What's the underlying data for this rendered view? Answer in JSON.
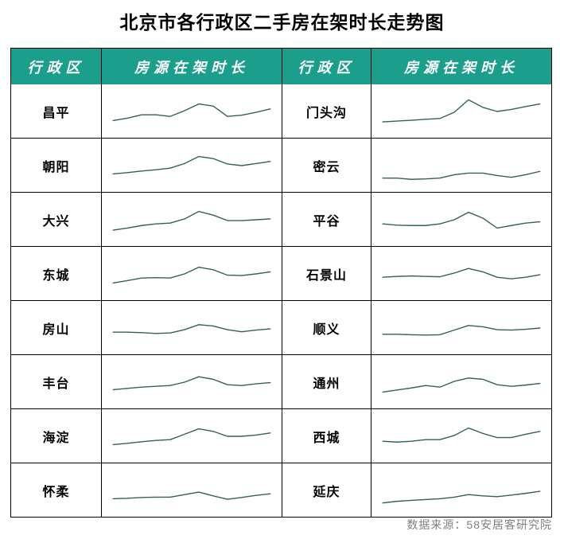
{
  "title": "北京市各行政区二手房在架时长走势图",
  "table": {
    "headers": [
      "行政区",
      "房源在架时长",
      "行政区",
      "房源在架时长"
    ],
    "rows": [
      {
        "left": "昌平",
        "right": "门头沟"
      },
      {
        "left": "朝阳",
        "right": "密云"
      },
      {
        "left": "大兴",
        "right": "平谷"
      },
      {
        "left": "东城",
        "right": "石景山"
      },
      {
        "left": "房山",
        "right": "顺义"
      },
      {
        "left": "丰台",
        "right": "通州"
      },
      {
        "left": "海淀",
        "right": "西城"
      },
      {
        "left": "怀柔",
        "right": "延庆"
      }
    ]
  },
  "footer": {
    "source_label": "数据来源：58安居客研究院"
  },
  "colors": {
    "header_bg": "#1B9E8C",
    "header_text": "#FFFFFF",
    "sparkline": "#33605C",
    "border": "#000000",
    "footer_text": "#7F7F7F",
    "title_text": "#000000",
    "background": "#FFFFFF"
  },
  "chart_data": {
    "type": "line",
    "variant": "sparkline-table",
    "title": "北京市各行政区二手房在架时长走势图",
    "ylabel": "房源在架时长",
    "xlabel": "",
    "legend_position": "none",
    "grid": false,
    "axes_labeled": false,
    "y_scale": "normalized 0-1; source shows unlabeled sparklines, values estimated from line positions",
    "series": [
      {
        "name": "昌平",
        "values": [
          0.28,
          0.34,
          0.42,
          0.42,
          0.38,
          0.52,
          0.68,
          0.63,
          0.38,
          0.41,
          0.48,
          0.56
        ]
      },
      {
        "name": "朝阳",
        "values": [
          0.3,
          0.33,
          0.37,
          0.4,
          0.44,
          0.55,
          0.72,
          0.67,
          0.54,
          0.5,
          0.55,
          0.6
        ]
      },
      {
        "name": "大兴",
        "values": [
          0.25,
          0.3,
          0.36,
          0.4,
          0.42,
          0.52,
          0.7,
          0.61,
          0.48,
          0.48,
          0.5,
          0.52
        ]
      },
      {
        "name": "东城",
        "values": [
          0.28,
          0.34,
          0.4,
          0.41,
          0.4,
          0.5,
          0.66,
          0.6,
          0.47,
          0.46,
          0.5,
          0.55
        ]
      },
      {
        "name": "房山",
        "values": [
          0.4,
          0.4,
          0.39,
          0.37,
          0.38,
          0.46,
          0.58,
          0.55,
          0.46,
          0.41,
          0.45,
          0.48
        ]
      },
      {
        "name": "丰台",
        "values": [
          0.32,
          0.35,
          0.38,
          0.4,
          0.42,
          0.5,
          0.63,
          0.57,
          0.44,
          0.42,
          0.46,
          0.49
        ]
      },
      {
        "name": "海淀",
        "values": [
          0.3,
          0.33,
          0.37,
          0.4,
          0.42,
          0.55,
          0.68,
          0.62,
          0.5,
          0.5,
          0.53,
          0.58
        ]
      },
      {
        "name": "怀柔",
        "values": [
          0.3,
          0.31,
          0.33,
          0.34,
          0.34,
          0.4,
          0.46,
          0.37,
          0.29,
          0.33,
          0.38,
          0.42
        ]
      },
      {
        "name": "门头沟",
        "values": [
          0.25,
          0.27,
          0.29,
          0.31,
          0.33,
          0.48,
          0.78,
          0.6,
          0.5,
          0.55,
          0.62,
          0.68
        ]
      },
      {
        "name": "密云",
        "values": [
          0.2,
          0.2,
          0.17,
          0.18,
          0.2,
          0.28,
          0.32,
          0.32,
          0.26,
          0.22,
          0.28,
          0.36
        ]
      },
      {
        "name": "平谷",
        "values": [
          0.4,
          0.37,
          0.36,
          0.36,
          0.4,
          0.5,
          0.68,
          0.54,
          0.3,
          0.36,
          0.42,
          0.45
        ]
      },
      {
        "name": "石景山",
        "values": [
          0.42,
          0.44,
          0.45,
          0.44,
          0.43,
          0.52,
          0.63,
          0.55,
          0.42,
          0.38,
          0.42,
          0.48
        ]
      },
      {
        "name": "顺义",
        "values": [
          0.35,
          0.35,
          0.34,
          0.33,
          0.34,
          0.45,
          0.56,
          0.53,
          0.46,
          0.45,
          0.47,
          0.5
        ]
      },
      {
        "name": "通州",
        "values": [
          0.26,
          0.31,
          0.36,
          0.42,
          0.38,
          0.52,
          0.6,
          0.57,
          0.44,
          0.4,
          0.43,
          0.47
        ]
      },
      {
        "name": "西城",
        "values": [
          0.38,
          0.36,
          0.38,
          0.42,
          0.42,
          0.52,
          0.7,
          0.57,
          0.47,
          0.47,
          0.55,
          0.62
        ]
      },
      {
        "name": "延庆",
        "values": [
          0.2,
          0.24,
          0.26,
          0.28,
          0.3,
          0.34,
          0.4,
          0.37,
          0.35,
          0.39,
          0.43,
          0.48
        ]
      }
    ]
  }
}
